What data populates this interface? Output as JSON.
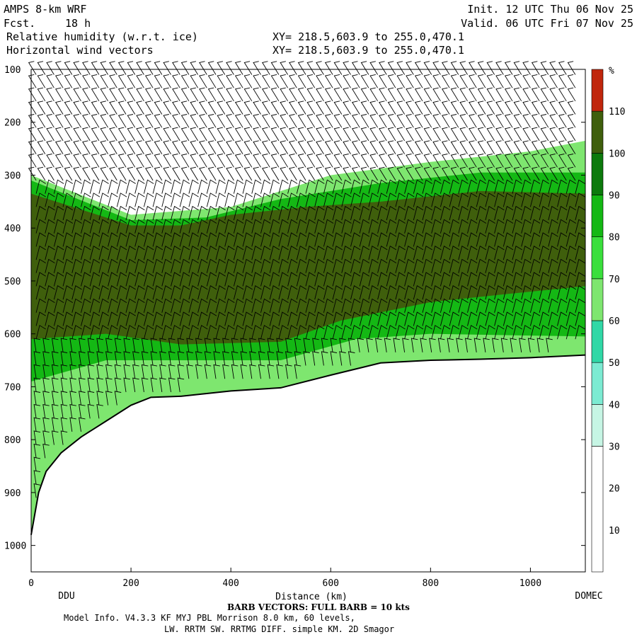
{
  "header": {
    "model": "AMPS 8-km WRF",
    "forecast_label": "Fcst.",
    "forecast_value": "18 h",
    "field1": "Relative humidity (w.r.t. ice)",
    "field2": "Horizontal wind vectors",
    "init": "Init. 12 UTC Thu 06 Nov 25",
    "valid": "Valid. 06 UTC Fri 07 Nov 25",
    "xy1": "XY= 218.5,603.9 to 255.0,470.1",
    "xy2": "XY= 218.5,603.9 to 255.0,470.1"
  },
  "footer": {
    "barb": "BARB VECTORS:  FULL BARB = 10 kts",
    "model_info": "Model Info. V4.3.3   KF      MYJ PBL  Morrison           8.0 km,  60 levels,",
    "physics": "LW. RRTM SW. RRTMG   DIFF. simple KM. 2D Smagor"
  },
  "chart_data": {
    "type": "heatmap",
    "title": "Relative humidity (w.r.t. ice)",
    "xlabel": "Distance (km)",
    "ylabel": "",
    "xlim": [
      0,
      1110
    ],
    "ylim": [
      1050,
      100
    ],
    "x_ticks": [
      0,
      200,
      400,
      600,
      800,
      1000
    ],
    "y_ticks": [
      100,
      200,
      300,
      400,
      500,
      600,
      700,
      800,
      900,
      1000
    ],
    "endpoints": {
      "left": "DDU",
      "right": "DOMEC"
    },
    "colorbar": {
      "unit": "%",
      "ticks": [
        10,
        20,
        30,
        40,
        50,
        60,
        70,
        80,
        90,
        100,
        110
      ],
      "bins": [
        {
          "from": 0,
          "to": 30,
          "color": "#ffffff"
        },
        {
          "from": 30,
          "to": 40,
          "color": "#c6f5e4"
        },
        {
          "from": 40,
          "to": 50,
          "color": "#7cebd2"
        },
        {
          "from": 50,
          "to": 60,
          "color": "#30d8a6"
        },
        {
          "from": 60,
          "to": 70,
          "color": "#7ee66f"
        },
        {
          "from": 70,
          "to": 80,
          "color": "#3adf3c"
        },
        {
          "from": 80,
          "to": 90,
          "color": "#14b814"
        },
        {
          "from": 90,
          "to": 100,
          "color": "#0c7a0c"
        },
        {
          "from": 100,
          "to": 110,
          "color": "#3f5f0c"
        },
        {
          "from": 110,
          "to": 120,
          "color": "#c0260c"
        }
      ]
    },
    "terrain_pressure": [
      {
        "x": 0,
        "p": 980
      },
      {
        "x": 15,
        "p": 900
      },
      {
        "x": 30,
        "p": 860
      },
      {
        "x": 60,
        "p": 825
      },
      {
        "x": 100,
        "p": 795
      },
      {
        "x": 150,
        "p": 765
      },
      {
        "x": 200,
        "p": 735
      },
      {
        "x": 240,
        "p": 720
      },
      {
        "x": 300,
        "p": 718
      },
      {
        "x": 400,
        "p": 708
      },
      {
        "x": 500,
        "p": 702
      },
      {
        "x": 600,
        "p": 678
      },
      {
        "x": 700,
        "p": 655
      },
      {
        "x": 800,
        "p": 650
      },
      {
        "x": 900,
        "p": 648
      },
      {
        "x": 1000,
        "p": 645
      },
      {
        "x": 1110,
        "p": 640
      }
    ],
    "rh_layers": [
      {
        "value": 105,
        "top": [
          {
            "x": 0,
            "p": 335
          },
          {
            "x": 200,
            "p": 395
          },
          {
            "x": 300,
            "p": 395
          },
          {
            "x": 400,
            "p": 375
          },
          {
            "x": 550,
            "p": 360
          },
          {
            "x": 700,
            "p": 350
          },
          {
            "x": 900,
            "p": 330
          },
          {
            "x": 1110,
            "p": 335
          }
        ],
        "bottom": [
          {
            "x": 0,
            "p": 610
          },
          {
            "x": 150,
            "p": 600
          },
          {
            "x": 300,
            "p": 620
          },
          {
            "x": 500,
            "p": 615
          },
          {
            "x": 620,
            "p": 575
          },
          {
            "x": 800,
            "p": 540
          },
          {
            "x": 950,
            "p": 525
          },
          {
            "x": 1110,
            "p": 510
          }
        ]
      },
      {
        "value": 85,
        "top": [
          {
            "x": 0,
            "p": 310
          },
          {
            "x": 200,
            "p": 385
          },
          {
            "x": 350,
            "p": 380
          },
          {
            "x": 500,
            "p": 345
          },
          {
            "x": 700,
            "p": 315
          },
          {
            "x": 900,
            "p": 295
          },
          {
            "x": 1110,
            "p": 295
          }
        ],
        "bottom": [
          {
            "x": 0,
            "p": 690
          },
          {
            "x": 150,
            "p": 650
          },
          {
            "x": 300,
            "p": 650
          },
          {
            "x": 500,
            "p": 650
          },
          {
            "x": 650,
            "p": 610
          },
          {
            "x": 800,
            "p": 600
          },
          {
            "x": 1110,
            "p": 605
          }
        ]
      },
      {
        "value": 65,
        "top": [
          {
            "x": 0,
            "p": 300
          },
          {
            "x": 200,
            "p": 375
          },
          {
            "x": 400,
            "p": 360
          },
          {
            "x": 600,
            "p": 300
          },
          {
            "x": 800,
            "p": 275
          },
          {
            "x": 1000,
            "p": 255
          },
          {
            "x": 1110,
            "p": 235
          }
        ],
        "bottom": [
          {
            "x": 0,
            "p": 980
          },
          {
            "x": 200,
            "p": 735
          },
          {
            "x": 500,
            "p": 702
          },
          {
            "x": 700,
            "p": 655
          },
          {
            "x": 1110,
            "p": 640
          }
        ]
      }
    ]
  }
}
